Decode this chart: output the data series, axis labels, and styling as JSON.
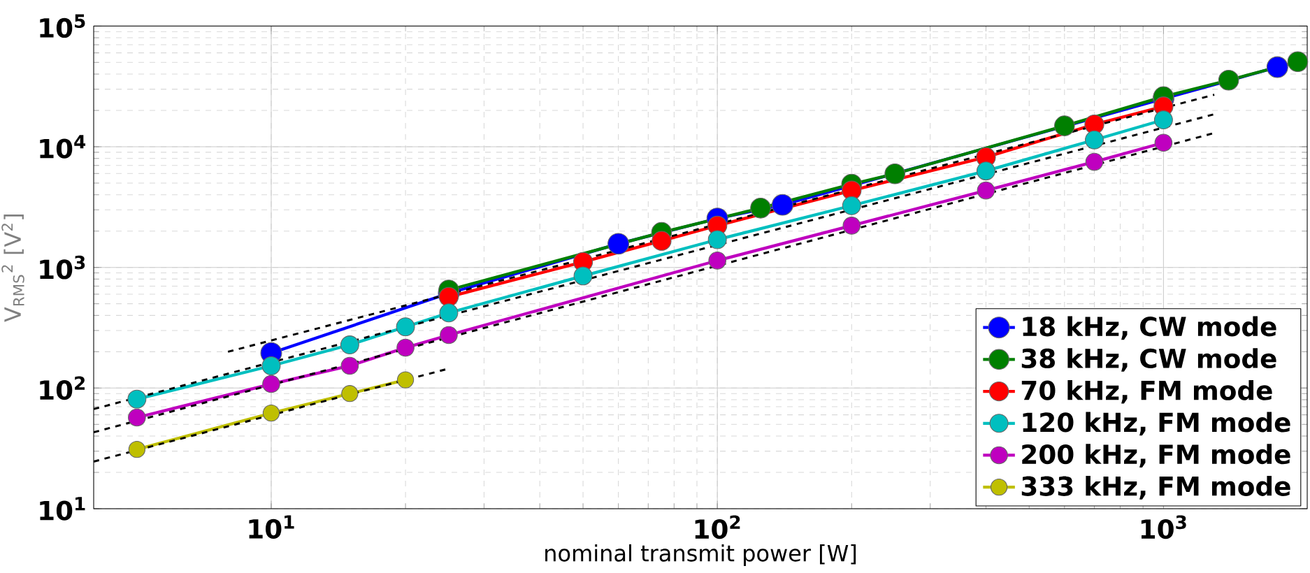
{
  "chart_data": {
    "type": "line",
    "xlabel": "nominal transmit power [W]",
    "ylabel": "V$_{RMS}$$^{2}$ [V$^{2}$]",
    "log": "xy",
    "grid": true,
    "legend": "bottom right",
    "marker": "circle",
    "line_style": "solid",
    "xlim": [
      4,
      2100
    ],
    "ylim": [
      10,
      100000
    ],
    "xticks": [
      {
        "value": 10,
        "label": "10$^{1}$"
      },
      {
        "value": 100,
        "label": "10$^{2}$"
      },
      {
        "value": 1000,
        "label": "10$^{3}$"
      }
    ],
    "yticks": [
      {
        "value": 10,
        "label": "10$^{1}$"
      },
      {
        "value": 100,
        "label": "10$^{2}$"
      },
      {
        "value": 1000,
        "label": "10$^{3}$"
      },
      {
        "value": 10000,
        "label": "10$^{4}$"
      },
      {
        "value": 100000,
        "label": "10$^{5}$"
      }
    ],
    "series": [
      {
        "name": "18 kHz, CW mode",
        "color": "#0000ff",
        "x": [
          10,
          25,
          60,
          100,
          140,
          1000,
          1800
        ],
        "values": [
          195,
          610,
          1570,
          2540,
          3300,
          25000,
          45700
        ]
      },
      {
        "name": "38 kHz, CW mode",
        "color": "#007f00",
        "x": [
          25,
          75,
          125,
          200,
          250,
          600,
          1000,
          1400,
          2000
        ],
        "values": [
          650,
          1950,
          3100,
          4900,
          5960,
          14900,
          26000,
          35600,
          50700
        ]
      },
      {
        "name": "70 kHz, FM mode",
        "color": "#ff0000",
        "x": [
          25,
          50,
          75,
          100,
          200,
          400,
          700,
          1000
        ],
        "values": [
          570,
          1110,
          1660,
          2220,
          4340,
          8200,
          15300,
          21600
        ]
      },
      {
        "name": "120 kHz, FM mode",
        "color": "#00bfbf",
        "x": [
          5,
          10,
          15,
          20,
          25,
          50,
          100,
          200,
          400,
          700,
          1000
        ],
        "values": [
          81,
          153,
          228,
          322,
          420,
          850,
          1700,
          3250,
          6300,
          11400,
          16700
        ]
      },
      {
        "name": "200 kHz, FM mode",
        "color": "#bf00bf",
        "x": [
          5,
          10,
          15,
          20,
          25,
          100,
          200,
          400,
          700,
          1000
        ],
        "values": [
          57,
          108,
          153,
          216,
          275,
          1140,
          2220,
          4340,
          7500,
          10800
        ]
      },
      {
        "name": "333 kHz, FM mode",
        "color": "#bfbf00",
        "x": [
          5,
          10,
          15,
          20
        ],
        "values": [
          31,
          62,
          90,
          117
        ]
      },
      {
        "type": "line",
        "color": "#000000",
        "line_style": "dashed",
        "marker": "none",
        "x": [
          8,
          1300
        ],
        "values": [
          200,
          27000
        ]
      },
      {
        "type": "line",
        "color": "#000000",
        "line_style": "dashed",
        "marker": "none",
        "x": [
          4,
          1300
        ],
        "values": [
          67,
          18600
        ]
      },
      {
        "type": "line",
        "color": "#000000",
        "line_style": "dashed",
        "marker": "none",
        "x": [
          4,
          1300
        ],
        "values": [
          43,
          13000
        ]
      },
      {
        "type": "line",
        "color": "#000000",
        "line_style": "dashed",
        "marker": "none",
        "x": [
          4,
          25
        ],
        "values": [
          24.6,
          145
        ]
      }
    ]
  }
}
